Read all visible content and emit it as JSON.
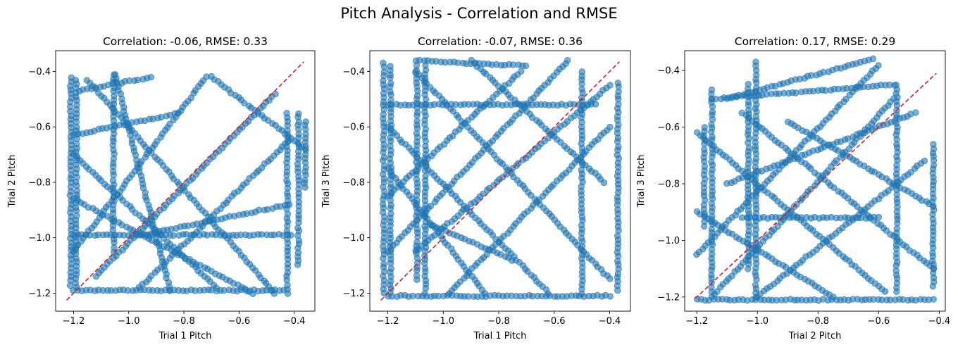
{
  "figure": {
    "suptitle": "Pitch Analysis - Correlation and RMSE"
  },
  "colors": {
    "points": "#1f77b4",
    "identity_line": "#e31a1c",
    "axes": "#000000",
    "background": "#ffffff"
  },
  "chart_data": [
    {
      "type": "scatter",
      "title": "Correlation: -0.06, RMSE: 0.33",
      "xlabel": "Trial 1 Pitch",
      "ylabel": "Trial 2 Pitch",
      "xlim": [
        -1.265,
        -0.325
      ],
      "ylim": [
        -1.265,
        -0.325
      ],
      "xticks": [
        -1.2,
        -1.0,
        -0.8,
        -0.6,
        -0.4
      ],
      "yticks": [
        -1.2,
        -1.0,
        -0.8,
        -0.6,
        -0.4
      ],
      "tick_labels": [
        "−1.2",
        "−1.0",
        "−0.8",
        "−0.6",
        "−0.4"
      ],
      "grid": false,
      "identity_line": [
        [
          -1.225,
          -1.225
        ],
        [
          -0.365,
          -0.365
        ]
      ],
      "point_alpha": 0.6,
      "series": [
        {
          "segments": [
            [
              [
                -1.21,
                -1.17
              ],
              [
                -1.21,
                -0.42
              ]
            ],
            [
              [
                -1.19,
                -1.18
              ],
              [
                -1.19,
                -0.43
              ]
            ],
            [
              [
                -1.055,
                -1.05
              ],
              [
                -1.055,
                -0.41
              ]
            ],
            [
              [
                -0.36,
                -0.58
              ],
              [
                -0.36,
                -0.82
              ]
            ],
            [
              [
                -0.385,
                -0.55
              ],
              [
                -0.385,
                -1.1
              ]
            ],
            [
              [
                -0.425,
                -0.55
              ],
              [
                -0.425,
                -1.2
              ]
            ],
            [
              [
                -1.2,
                -1.19
              ],
              [
                -0.44,
                -1.19
              ]
            ],
            [
              [
                -1.2,
                -0.99
              ],
              [
                -0.41,
                -0.99
              ]
            ],
            [
              [
                -1.2,
                -0.63
              ],
              [
                -0.82,
                -0.55
              ]
            ],
            [
              [
                -1.05,
                -0.41
              ],
              [
                -0.85,
                -1.19
              ]
            ],
            [
              [
                -1.2,
                -1.05
              ],
              [
                -0.72,
                -0.42
              ]
            ],
            [
              [
                -0.96,
                -1.18
              ],
              [
                -0.42,
                -0.65
              ]
            ],
            [
              [
                -1.2,
                -0.7
              ],
              [
                -0.68,
                -1.18
              ]
            ],
            [
              [
                -1.15,
                -0.43
              ],
              [
                -0.47,
                -1.2
              ]
            ],
            [
              [
                -0.7,
                -0.42
              ],
              [
                -0.36,
                -0.68
              ]
            ],
            [
              [
                -1.2,
                -0.86
              ],
              [
                -0.55,
                -1.2
              ]
            ],
            [
              [
                -1.18,
                -0.47
              ],
              [
                -0.92,
                -0.42
              ]
            ],
            [
              [
                -1.12,
                -1.14
              ],
              [
                -0.47,
                -0.48
              ]
            ],
            [
              [
                -0.95,
                -0.99
              ],
              [
                -0.42,
                -0.88
              ]
            ]
          ]
        }
      ]
    },
    {
      "type": "scatter",
      "title": "Correlation: -0.07, RMSE: 0.36",
      "xlabel": "Trial 1 Pitch",
      "ylabel": "Trial 3 Pitch",
      "xlim": [
        -1.265,
        -0.325
      ],
      "ylim": [
        -1.265,
        -0.325
      ],
      "xticks": [
        -1.2,
        -1.0,
        -0.8,
        -0.6,
        -0.4
      ],
      "yticks": [
        -1.2,
        -1.0,
        -0.8,
        -0.6,
        -0.4
      ],
      "tick_labels": [
        "−1.2",
        "−1.0",
        "−0.8",
        "−0.6",
        "−0.4"
      ],
      "grid": false,
      "identity_line": [
        [
          -1.225,
          -1.225
        ],
        [
          -0.365,
          -0.365
        ]
      ],
      "point_alpha": 0.6,
      "series": [
        {
          "segments": [
            [
              [
                -1.215,
                -1.2
              ],
              [
                -1.215,
                -0.37
              ]
            ],
            [
              [
                -1.19,
                -1.2
              ],
              [
                -1.19,
                -0.38
              ]
            ],
            [
              [
                -1.065,
                -1.2
              ],
              [
                -1.065,
                -0.38
              ]
            ],
            [
              [
                -1.095,
                -1.15
              ],
              [
                -1.095,
                -0.38
              ]
            ],
            [
              [
                -0.37,
                -0.44
              ],
              [
                -0.37,
                -1.19
              ]
            ],
            [
              [
                -0.5,
                -0.4
              ],
              [
                -0.5,
                -1.2
              ]
            ],
            [
              [
                -1.2,
                -1.21
              ],
              [
                -0.4,
                -1.21
              ]
            ],
            [
              [
                -1.2,
                -0.52
              ],
              [
                -0.45,
                -0.52
              ]
            ],
            [
              [
                -1.2,
                -1.05
              ],
              [
                -0.55,
                -0.36
              ]
            ],
            [
              [
                -1.1,
                -0.4
              ],
              [
                -0.4,
                -1.15
              ]
            ],
            [
              [
                -1.2,
                -0.6
              ],
              [
                -0.62,
                -1.2
              ]
            ],
            [
              [
                -0.98,
                -1.2
              ],
              [
                -0.4,
                -0.6
              ]
            ],
            [
              [
                -1.2,
                -0.85
              ],
              [
                -0.72,
                -0.4
              ]
            ],
            [
              [
                -1.2,
                -0.75
              ],
              [
                -0.85,
                -1.2
              ]
            ],
            [
              [
                -1.1,
                -0.36
              ],
              [
                -0.7,
                -0.38
              ]
            ],
            [
              [
                -1.1,
                -1.05
              ],
              [
                -0.4,
                -0.45
              ]
            ],
            [
              [
                -0.9,
                -0.36
              ],
              [
                -0.42,
                -0.8
              ]
            ],
            [
              [
                -1.05,
                -0.95
              ],
              [
                -0.75,
                -1.08
              ]
            ]
          ]
        }
      ]
    },
    {
      "type": "scatter",
      "title": "Correlation: 0.17, RMSE: 0.29",
      "xlabel": "Trial 2 Pitch",
      "ylabel": "Trial 3 Pitch",
      "xlim": [
        -1.24,
        -0.38
      ],
      "ylim": [
        -1.25,
        -0.33
      ],
      "xticks": [
        -1.2,
        -1.0,
        -0.8,
        -0.6,
        -0.4
      ],
      "yticks": [
        -1.2,
        -1.0,
        -0.8,
        -0.6,
        -0.4
      ],
      "tick_labels": [
        "−1.2",
        "−1.0",
        "−0.8",
        "−0.6",
        "−0.4"
      ],
      "grid": false,
      "identity_line": [
        [
          -1.205,
          -1.205
        ],
        [
          -0.41,
          -0.41
        ]
      ],
      "point_alpha": 0.6,
      "series": [
        {
          "segments": [
            [
              [
                -1.175,
                -0.6
              ],
              [
                -1.175,
                -0.95
              ]
            ],
            [
              [
                -1.15,
                -0.47
              ],
              [
                -1.15,
                -1.18
              ]
            ],
            [
              [
                -1.005,
                -0.37
              ],
              [
                -1.005,
                -1.2
              ]
            ],
            [
              [
                -1.03,
                -0.45
              ],
              [
                -1.03,
                -1.1
              ]
            ],
            [
              [
                -0.42,
                -0.66
              ],
              [
                -0.42,
                -1.16
              ]
            ],
            [
              [
                -0.54,
                -0.45
              ],
              [
                -0.54,
                -1.18
              ]
            ],
            [
              [
                -1.2,
                -1.21
              ],
              [
                -0.42,
                -1.21
              ]
            ],
            [
              [
                -1.2,
                -1.05
              ],
              [
                -0.6,
                -0.38
              ]
            ],
            [
              [
                -1.15,
                -0.5
              ],
              [
                -0.55,
                -0.45
              ]
            ],
            [
              [
                -1.2,
                -0.62
              ],
              [
                -0.58,
                -1.18
              ]
            ],
            [
              [
                -1.15,
                -1.2
              ],
              [
                -0.55,
                -0.5
              ]
            ],
            [
              [
                -1.05,
                -0.55
              ],
              [
                -0.42,
                -1.1
              ]
            ],
            [
              [
                -1.0,
                -1.2
              ],
              [
                -0.45,
                -0.72
              ]
            ],
            [
              [
                -1.2,
                -0.9
              ],
              [
                -0.75,
                -1.2
              ]
            ],
            [
              [
                -0.9,
                -0.58
              ],
              [
                -0.42,
                -0.88
              ]
            ],
            [
              [
                -1.05,
                -0.92
              ],
              [
                -0.6,
                -0.92
              ]
            ],
            [
              [
                -1.1,
                -0.5
              ],
              [
                -0.62,
                -0.36
              ]
            ],
            [
              [
                -1.1,
                -0.8
              ],
              [
                -0.48,
                -0.55
              ]
            ]
          ]
        }
      ]
    }
  ]
}
